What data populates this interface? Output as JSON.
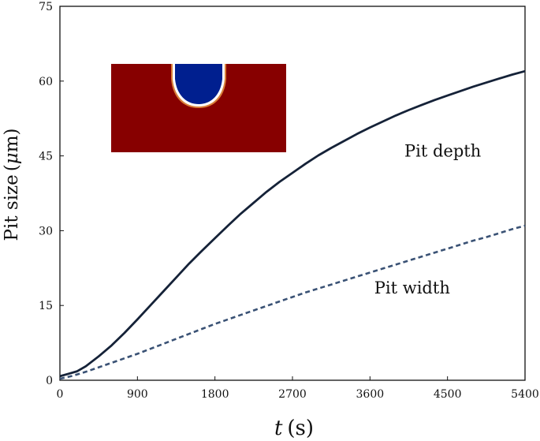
{
  "chart_data": {
    "type": "line",
    "title": "",
    "xlabel": {
      "var": "t",
      "unit": "(s)"
    },
    "ylabel": {
      "main": "Pit size",
      "unit_open": "(",
      "unit_mu": "μ",
      "unit_rest": "m",
      "unit_close": ")"
    },
    "xlim": [
      0,
      5400
    ],
    "ylim": [
      0,
      75
    ],
    "x_ticks": [
      0,
      900,
      1800,
      2700,
      3600,
      4500,
      5400
    ],
    "y_ticks": [
      0,
      15,
      30,
      45,
      60,
      75
    ],
    "grid": false,
    "series": [
      {
        "name": "Pit depth",
        "style": "solid",
        "color": "#152238",
        "x": [
          0,
          100,
          200,
          300,
          450,
          600,
          750,
          900,
          1050,
          1200,
          1350,
          1500,
          1650,
          1800,
          1950,
          2100,
          2250,
          2400,
          2550,
          2700,
          2850,
          3000,
          3150,
          3300,
          3450,
          3600,
          3750,
          3900,
          4050,
          4200,
          4350,
          4500,
          4650,
          4800,
          4950,
          5100,
          5250,
          5400
        ],
        "y": [
          0.8,
          1.3,
          1.8,
          2.8,
          4.8,
          7.0,
          9.5,
          12.2,
          15.0,
          17.8,
          20.6,
          23.4,
          26.0,
          28.5,
          31.0,
          33.4,
          35.6,
          37.8,
          39.8,
          41.6,
          43.4,
          45.1,
          46.6,
          48.0,
          49.4,
          50.7,
          51.9,
          53.1,
          54.2,
          55.2,
          56.2,
          57.1,
          58.0,
          58.9,
          59.7,
          60.5,
          61.3,
          62.0
        ]
      },
      {
        "name": "Pit width",
        "style": "dashed",
        "color": "#3a5275",
        "x": [
          0,
          150,
          300,
          450,
          600,
          750,
          900,
          1050,
          1200,
          1350,
          1500,
          1650,
          1800,
          1950,
          2100,
          2250,
          2400,
          2550,
          2700,
          2850,
          3000,
          3150,
          3300,
          3450,
          3600,
          3750,
          3900,
          4050,
          4200,
          4350,
          4500,
          4650,
          4800,
          4950,
          5100,
          5250,
          5400
        ],
        "y": [
          0.3,
          0.9,
          1.7,
          2.6,
          3.5,
          4.4,
          5.3,
          6.3,
          7.3,
          8.3,
          9.3,
          10.3,
          11.3,
          12.2,
          13.1,
          14.0,
          14.9,
          15.8,
          16.7,
          17.6,
          18.4,
          19.2,
          20.0,
          20.8,
          21.6,
          22.4,
          23.2,
          24.0,
          24.8,
          25.6,
          26.4,
          27.2,
          28.0,
          28.7,
          29.5,
          30.3,
          31.0
        ]
      }
    ],
    "annotations": [
      {
        "text": "Pit depth",
        "anchor_x": 4000,
        "anchor_y": 46.0
      },
      {
        "text": "Pit width",
        "anchor_x": 3650,
        "anchor_y": 18.5
      }
    ],
    "inset": {
      "description_colors": {
        "metal": "#870000",
        "pit": "#001f8f",
        "interface": "#ffffff"
      }
    }
  }
}
